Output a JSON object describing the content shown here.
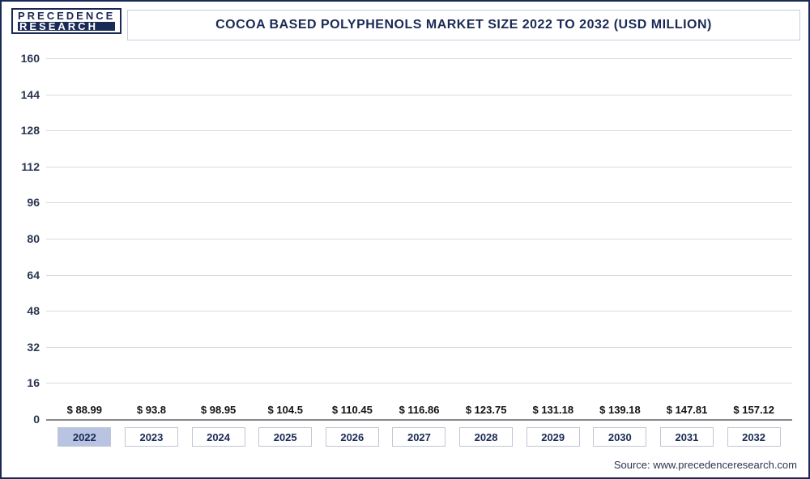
{
  "logo": {
    "line1": "PRECEDENCE",
    "line2": "RESEARCH"
  },
  "title": "COCOA BASED POLYPHENOLS MARKET SIZE 2022 TO 2032 (USD MILLION)",
  "source_text": "Source: www.precedenceresearch.com",
  "chart": {
    "type": "bar",
    "background_color": "#ffffff",
    "grid_color": "#d7dbe3",
    "border_color": "#1a2a56",
    "ylim": [
      0,
      160
    ],
    "yticks": [
      0,
      16,
      32,
      48,
      64,
      80,
      96,
      112,
      128,
      144,
      160
    ],
    "ytick_fontsize": 14,
    "label_fontsize": 13,
    "title_fontsize": 16,
    "bar_width": 0.72,
    "categories": [
      "2022",
      "2023",
      "2024",
      "2025",
      "2026",
      "2027",
      "2028",
      "2029",
      "2030",
      "2031",
      "2032"
    ],
    "active_category": "2022",
    "values": [
      88.99,
      93.8,
      98.95,
      104.5,
      110.45,
      116.86,
      123.75,
      131.18,
      139.18,
      147.81,
      157.12
    ],
    "value_labels": [
      "$ 88.99",
      "$ 93.8",
      "$ 98.95",
      "$ 104.5",
      "$ 110.45",
      "$ 116.86",
      "$ 123.75",
      "$ 131.18",
      "$ 139.18",
      "$ 147.81",
      "$ 157.12"
    ],
    "bar_colors": [
      "#b9c4e2",
      "#5a6aa0",
      "#4a5d99",
      "#3c5292",
      "#32488a",
      "#2a4082",
      "#22387a",
      "#1b3072",
      "#16296a",
      "#122463",
      "#0f1f5c"
    ]
  }
}
